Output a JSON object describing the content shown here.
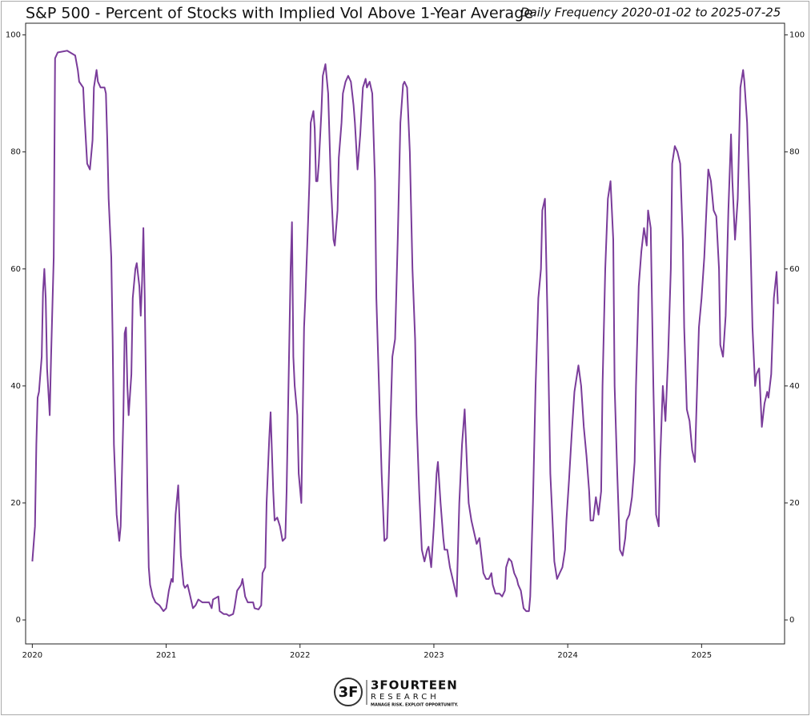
{
  "chart_data": {
    "type": "line",
    "title": "S&P 500 - Percent of Stocks with Implied Vol Above 1-Year Average",
    "subtitle": "Daily Frequency 2020-01-02 to 2025-07-25",
    "color": "#7a3c9a",
    "xlim": [
      2019.95,
      2025.62
    ],
    "xticks": [
      2020,
      2021,
      2022,
      2023,
      2024,
      2025
    ],
    "ylim": [
      -4.1,
      102
    ],
    "yticks": [
      0,
      20,
      40,
      60,
      80,
      100
    ],
    "x": [
      2020.0,
      2020.02,
      2020.03,
      2020.04,
      2020.05,
      2020.07,
      2020.08,
      2020.09,
      2020.1,
      2020.11,
      2020.13,
      2020.14,
      2020.16,
      2020.17,
      2020.19,
      2020.26,
      2020.32,
      2020.34,
      2020.35,
      2020.38,
      2020.39,
      2020.41,
      2020.43,
      2020.45,
      2020.46,
      2020.48,
      2020.49,
      2020.51,
      2020.54,
      2020.55,
      2020.56,
      2020.57,
      2020.59,
      2020.6,
      2020.61,
      2020.63,
      2020.65,
      2020.66,
      2020.68,
      2020.69,
      2020.7,
      2020.71,
      2020.72,
      2020.74,
      2020.75,
      2020.77,
      2020.78,
      2020.8,
      2020.81,
      2020.82,
      2020.83,
      2020.84,
      2020.86,
      2020.87,
      2020.88,
      2020.9,
      2020.92,
      2020.95,
      2020.98,
      2021.0,
      2021.02,
      2021.04,
      2021.05,
      2021.07,
      2021.09,
      2021.11,
      2021.13,
      2021.14,
      2021.16,
      2021.18,
      2021.2,
      2021.22,
      2021.24,
      2021.27,
      2021.29,
      2021.32,
      2021.34,
      2021.35,
      2021.39,
      2021.4,
      2021.43,
      2021.45,
      2021.47,
      2021.5,
      2021.51,
      2021.53,
      2021.56,
      2021.57,
      2021.59,
      2021.61,
      2021.63,
      2021.65,
      2021.66,
      2021.69,
      2021.71,
      2021.72,
      2021.74,
      2021.75,
      2021.77,
      2021.78,
      2021.8,
      2021.81,
      2021.83,
      2021.85,
      2021.87,
      2021.89,
      2021.9,
      2021.91,
      2021.93,
      2021.94,
      2021.95,
      2021.96,
      2021.98,
      2021.99,
      2022.01,
      2022.02,
      2022.03,
      2022.04,
      2022.06,
      2022.07,
      2022.08,
      2022.1,
      2022.11,
      2022.12,
      2022.13,
      2022.14,
      2022.16,
      2022.17,
      2022.19,
      2022.21,
      2022.23,
      2022.25,
      2022.26,
      2022.28,
      2022.29,
      2022.31,
      2022.32,
      2022.34,
      2022.36,
      2022.38,
      2022.4,
      2022.41,
      2022.43,
      2022.45,
      2022.47,
      2022.49,
      2022.5,
      2022.52,
      2022.54,
      2022.56,
      2022.57,
      2022.59,
      2022.61,
      2022.63,
      2022.65,
      2022.66,
      2022.68,
      2022.69,
      2022.71,
      2022.73,
      2022.75,
      2022.77,
      2022.78,
      2022.8,
      2022.82,
      2022.84,
      2022.86,
      2022.87,
      2022.89,
      2022.91,
      2022.93,
      2022.95,
      2022.96,
      2022.98,
      2023.0,
      2023.02,
      2023.03,
      2023.05,
      2023.07,
      2023.08,
      2023.1,
      2023.12,
      2023.14,
      2023.16,
      2023.17,
      2023.19,
      2023.21,
      2023.23,
      2023.25,
      2023.26,
      2023.28,
      2023.3,
      2023.32,
      2023.34,
      2023.35,
      2023.37,
      2023.39,
      2023.41,
      2023.43,
      2023.44,
      2023.46,
      2023.49,
      2023.51,
      2023.53,
      2023.54,
      2023.56,
      2023.58,
      2023.6,
      2023.62,
      2023.63,
      2023.65,
      2023.67,
      2023.69,
      2023.71,
      2023.72,
      2023.74,
      2023.76,
      2023.78,
      2023.8,
      2023.81,
      2023.83,
      2023.85,
      2023.87,
      2023.89,
      2023.9,
      2023.92,
      2023.94,
      2023.96,
      2023.98,
      2023.99,
      2024.01,
      2024.03,
      2024.05,
      2024.07,
      2024.08,
      2024.1,
      2024.12,
      2024.14,
      2024.16,
      2024.17,
      2024.19,
      2024.21,
      2024.23,
      2024.25,
      2024.26,
      2024.28,
      2024.3,
      2024.32,
      2024.34,
      2024.35,
      2024.37,
      2024.39,
      2024.41,
      2024.43,
      2024.44,
      2024.46,
      2024.48,
      2024.5,
      2024.51,
      2024.53,
      2024.55,
      2024.57,
      2024.59,
      2024.6,
      2024.62,
      2024.64,
      2024.66,
      2024.68,
      2024.69,
      2024.71,
      2024.73,
      2024.75,
      2024.77,
      2024.78,
      2024.8,
      2024.82,
      2024.84,
      2024.86,
      2024.87,
      2024.89,
      2024.91,
      2024.93,
      2024.95,
      2024.96,
      2024.98,
      2025.0,
      2025.02,
      2025.04,
      2025.05,
      2025.07,
      2025.09,
      2025.11,
      2025.13,
      2025.14,
      2025.16,
      2025.18,
      2025.2,
      2025.22,
      2025.23,
      2025.25,
      2025.27,
      2025.29,
      2025.31,
      2025.32,
      2025.34,
      2025.36,
      2025.38,
      2025.4,
      2025.41,
      2025.43,
      2025.45,
      2025.47,
      2025.49,
      2025.5,
      2025.52,
      2025.54,
      2025.56,
      2025.57
    ],
    "values": [
      10,
      16,
      30,
      38,
      39,
      45,
      56,
      60,
      55,
      43,
      35,
      45,
      62,
      96,
      97,
      97.3,
      96.5,
      94,
      92,
      91,
      86,
      78,
      77,
      82,
      91,
      94,
      92,
      91,
      91,
      90,
      82,
      72,
      62,
      48,
      30,
      18,
      13.5,
      16,
      35,
      49,
      50,
      40,
      35,
      42,
      55,
      60,
      61,
      57,
      52,
      58,
      67,
      55,
      22,
      9,
      6,
      4,
      3,
      2.5,
      1.5,
      2,
      5,
      7,
      6.5,
      18,
      23,
      11,
      6,
      5.5,
      6,
      4,
      2,
      2.5,
      3.5,
      3,
      3,
      3,
      2,
      3.5,
      4,
      1.5,
      1,
      1,
      0.7,
      1,
      2,
      5,
      6,
      7,
      4,
      3,
      3,
      3,
      2,
      1.8,
      2.5,
      8,
      9,
      20,
      31,
      35.5,
      22,
      17,
      17.5,
      16,
      13.5,
      14,
      22,
      35,
      60,
      68,
      45,
      40,
      35,
      25,
      20,
      35,
      50,
      55,
      68,
      75,
      85,
      87,
      84,
      75,
      75,
      78,
      87,
      93,
      95,
      90,
      75,
      65,
      64,
      70,
      79,
      85,
      90,
      92,
      93,
      92,
      88,
      85,
      77,
      83,
      91,
      92.5,
      91,
      92,
      90,
      75,
      55,
      40,
      25,
      13.5,
      14,
      22,
      37,
      45,
      48,
      65,
      85,
      91.5,
      92,
      91,
      80,
      60,
      48,
      35,
      22,
      12,
      10,
      12,
      12.5,
      9,
      16,
      25,
      27,
      20,
      14,
      12,
      12,
      9,
      7,
      5,
      4,
      20,
      30,
      36,
      25,
      20,
      17,
      15,
      13,
      14,
      12,
      8,
      7,
      7,
      8,
      6,
      4.5,
      4.5,
      4,
      5,
      9,
      10.5,
      10,
      8,
      7,
      6,
      5,
      2,
      1.5,
      1.5,
      4,
      20,
      40,
      55,
      60,
      70,
      72,
      50,
      25,
      15,
      10,
      7,
      8,
      9,
      12,
      17,
      24,
      32,
      39,
      42,
      43.5,
      40,
      33,
      28,
      22,
      17,
      17,
      21,
      18,
      22,
      40,
      60,
      72,
      75,
      65,
      40,
      25,
      12,
      11,
      14,
      17,
      18,
      21,
      27,
      40,
      57,
      63,
      67,
      64,
      70,
      67,
      40,
      18,
      16,
      27,
      40,
      34,
      45,
      60,
      78,
      81,
      80,
      78,
      65,
      50,
      36,
      34,
      29,
      27,
      35,
      50,
      55,
      62,
      72,
      77,
      75,
      70,
      69,
      60,
      47,
      45,
      52,
      70,
      83,
      75,
      65,
      72,
      91,
      94,
      92,
      85,
      70,
      50,
      40,
      42,
      43,
      33,
      37,
      39,
      38,
      42,
      55,
      59.5,
      54
    ],
    "logo": {
      "name": "3FOURTEEN",
      "sub": "RESEARCH",
      "tagline": "MANAGE RISK. EXPLOIT OPPORTUNITY."
    }
  }
}
